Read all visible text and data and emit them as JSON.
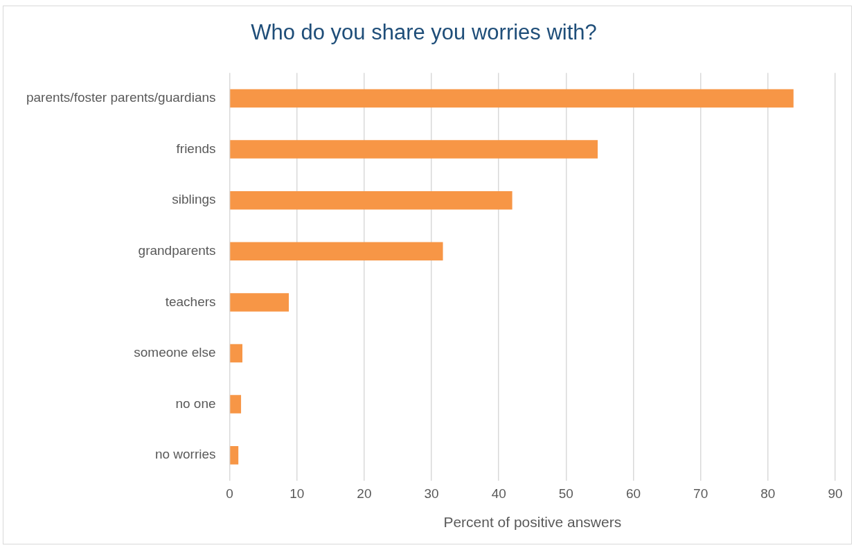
{
  "chart_data": {
    "type": "bar",
    "orientation": "horizontal",
    "title": "Who do you share you worries with?",
    "xlabel": "Percent of positive answers",
    "categories": [
      "parents/foster parents/guardians",
      "friends",
      "siblings",
      "grandparents",
      "teachers",
      "someone else",
      "no one",
      "no worries"
    ],
    "values": [
      83.8,
      54.7,
      42,
      31.7,
      8.8,
      1.9,
      1.7,
      1.3
    ],
    "color": "#f79646",
    "xlim": [
      0,
      90
    ],
    "xticks": [
      0,
      10,
      20,
      30,
      40,
      50,
      60,
      70,
      80,
      90
    ],
    "grid": "x",
    "legend": false
  }
}
